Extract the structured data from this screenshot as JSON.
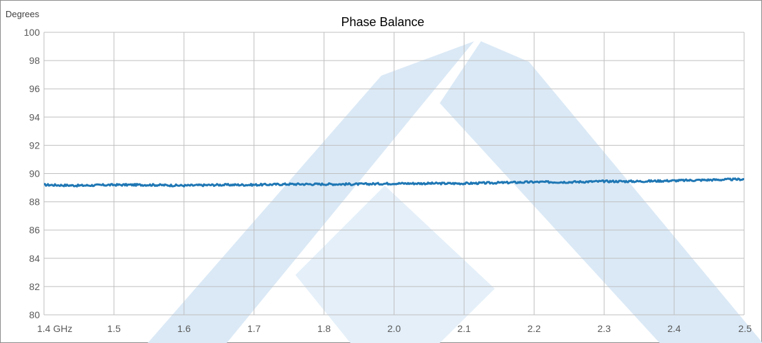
{
  "chart_data": {
    "type": "line",
    "title": "Phase Balance",
    "ylabel": "Degrees",
    "xlabel": "",
    "ylim": [
      80,
      100
    ],
    "y_ticks": [
      80,
      82,
      84,
      86,
      88,
      90,
      92,
      94,
      96,
      98,
      100
    ],
    "x_categories": [
      "1.4  GHz",
      "1.5",
      "1.6",
      "1.7",
      "1.8",
      "2.0",
      "2.1",
      "2.2",
      "2.3",
      "2.4",
      "2.5"
    ],
    "grid": true,
    "legend": "none",
    "series": [
      {
        "color": "#1f77b4",
        "x_index": [
          0,
          0.5,
          1,
          1.5,
          2,
          2.5,
          3,
          3.5,
          4,
          4.5,
          5,
          5.5,
          6,
          6.5,
          7,
          7.5,
          8,
          8.5,
          9,
          9.5,
          10
        ],
        "values": [
          89.2,
          89.15,
          89.2,
          89.2,
          89.15,
          89.2,
          89.2,
          89.25,
          89.25,
          89.25,
          89.3,
          89.3,
          89.3,
          89.35,
          89.4,
          89.4,
          89.45,
          89.45,
          89.5,
          89.55,
          89.6
        ]
      }
    ]
  },
  "colors": {
    "grid": "#bfbfbf",
    "line": "#1f77b4",
    "watermark": "#dbe9f6"
  }
}
